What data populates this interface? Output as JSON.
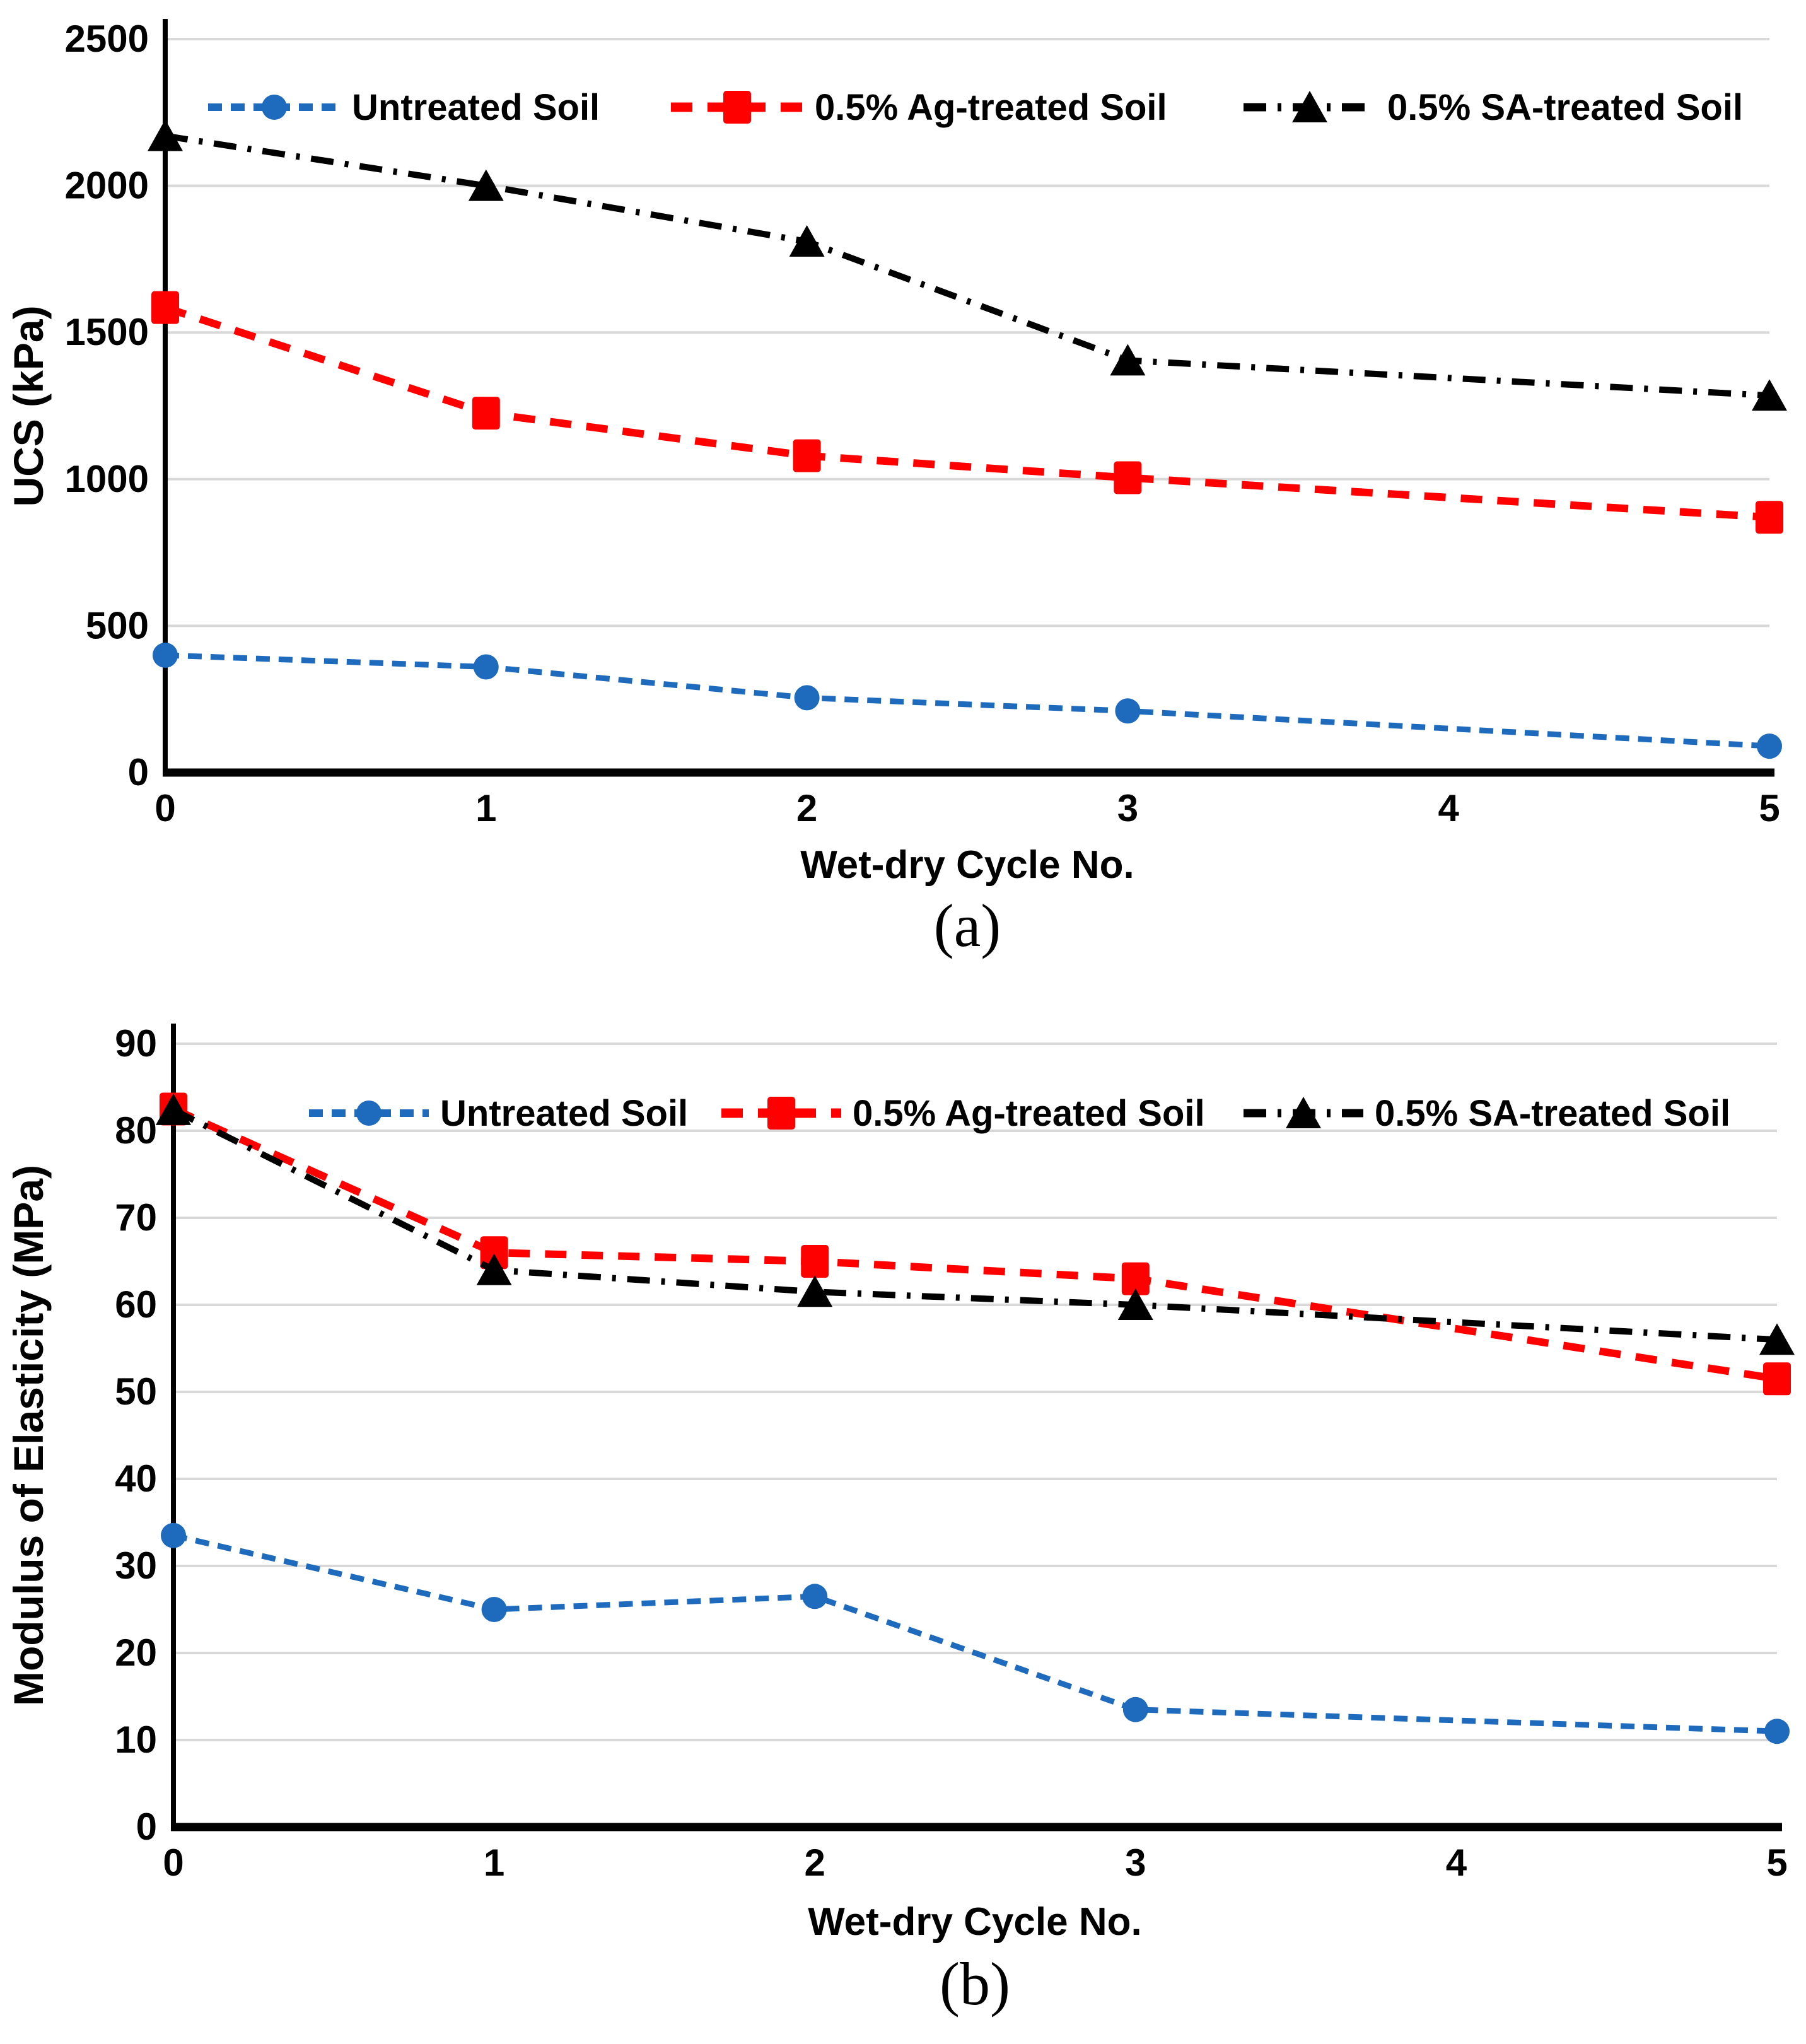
{
  "figure": {
    "description": "Two stacked line charts showing effect of wet-dry cycles on soil strength",
    "captions": [
      "(a)",
      "(b)"
    ]
  },
  "colors": {
    "untreated_blue": "#1E6BBE",
    "ag_red": "#FF0000",
    "sa_black": "#000000",
    "gridline_gray": "#D8D8D8",
    "axis_black": "#000000",
    "background": "#FFFFFF"
  },
  "chart_data": [
    {
      "id": "a",
      "type": "line",
      "title": "",
      "xlabel": "Wet-dry Cycle No.",
      "ylabel": "UCS (kPa)",
      "caption": "(a)",
      "grid": true,
      "legend_position": "top-inside",
      "xlim": [
        0,
        5
      ],
      "ylim": [
        0,
        2500
      ],
      "xticks": [
        "0",
        "1",
        "2",
        "3",
        "4",
        "5"
      ],
      "yticks": [
        "0",
        "500",
        "1000",
        "1500",
        "2000",
        "2500"
      ],
      "x": [
        0,
        1,
        2,
        3,
        5
      ],
      "series": [
        {
          "name": "Untreated Soil",
          "marker": "circle",
          "line_style": "short-dash",
          "color": "#1E6BBE",
          "values": [
            400,
            360,
            255,
            210,
            90
          ]
        },
        {
          "name": "0.5% Ag-treated Soil",
          "marker": "square",
          "line_style": "long-dash",
          "color": "#FF0000",
          "values": [
            1585,
            1225,
            1080,
            1005,
            870
          ]
        },
        {
          "name": "0.5% SA-treated Soil",
          "marker": "triangle",
          "line_style": "dash-dot",
          "color": "#000000",
          "values": [
            2170,
            2000,
            1810,
            1405,
            1285
          ]
        }
      ]
    },
    {
      "id": "b",
      "type": "line",
      "title": "",
      "xlabel": "Wet-dry Cycle No.",
      "ylabel": "Modulus of Elasticity  (MPa)",
      "caption": "(b)",
      "grid": true,
      "legend_position": "top-inside",
      "xlim": [
        0,
        5
      ],
      "ylim": [
        0,
        90
      ],
      "xticks": [
        "0",
        "1",
        "2",
        "3",
        "4",
        "5"
      ],
      "yticks": [
        "0",
        "10",
        "20",
        "30",
        "40",
        "50",
        "60",
        "70",
        "80",
        "90"
      ],
      "x": [
        0,
        1,
        2,
        3,
        5
      ],
      "series": [
        {
          "name": "Untreated Soil",
          "marker": "circle",
          "line_style": "short-dash",
          "color": "#1E6BBE",
          "values": [
            33.5,
            25,
            26.5,
            13.5,
            11
          ]
        },
        {
          "name": "0.5% Ag-treated Soil",
          "marker": "square",
          "line_style": "long-dash",
          "color": "#FF0000",
          "values": [
            82.5,
            66,
            65,
            63,
            51.5
          ]
        },
        {
          "name": "0.5% SA-treated Soil",
          "marker": "triangle",
          "line_style": "dash-dot",
          "color": "#000000",
          "values": [
            82.4,
            64,
            61.5,
            60,
            56
          ]
        }
      ]
    }
  ]
}
